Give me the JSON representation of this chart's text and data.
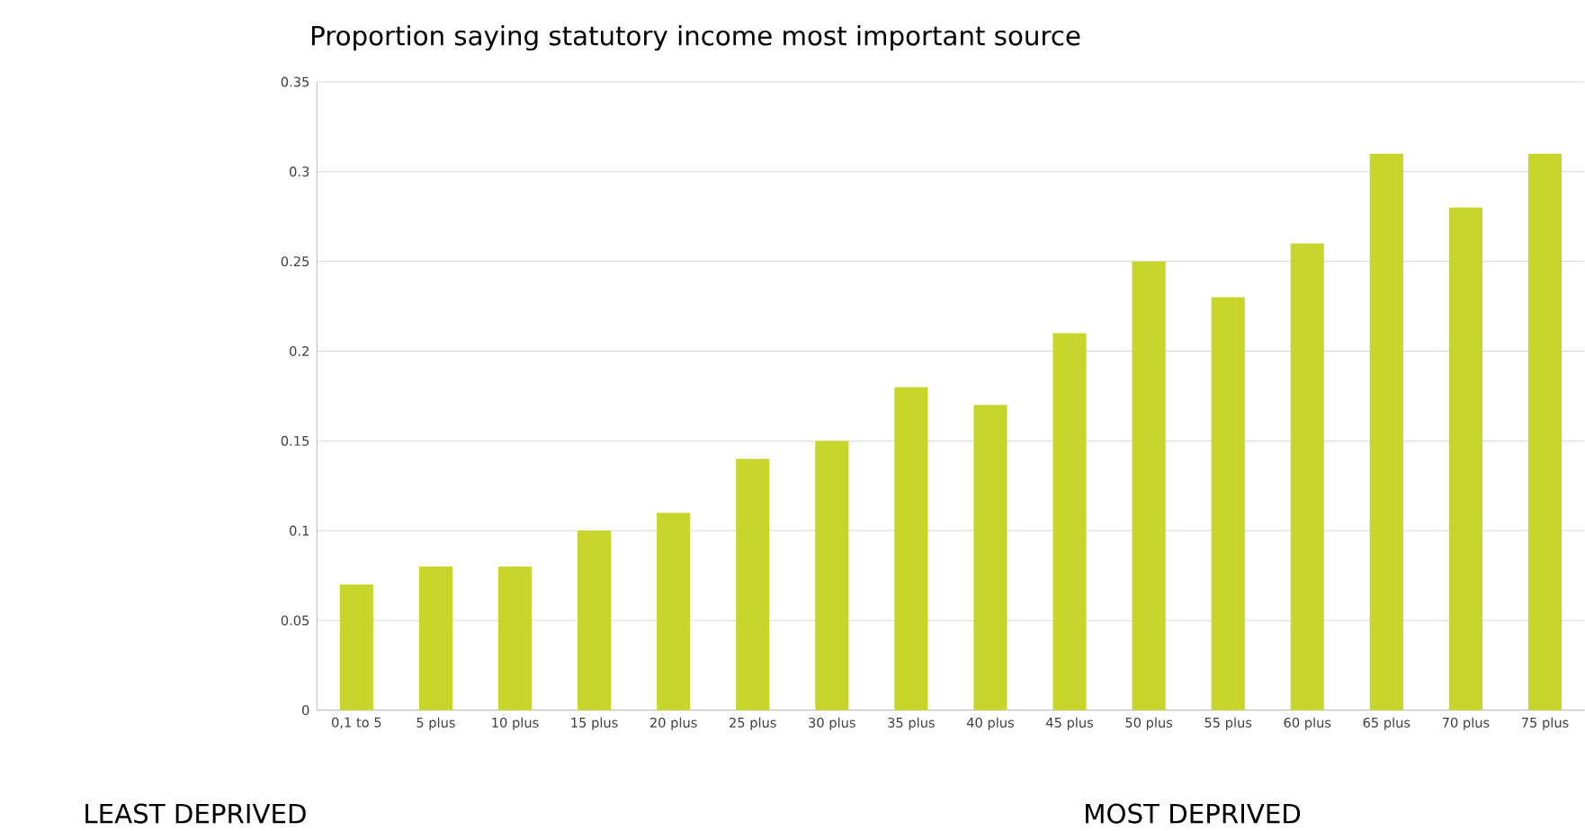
{
  "chart_data": {
    "type": "bar",
    "title": "Proportion saying statutory income most important source",
    "categories": [
      "0,1 to 5",
      "5 plus",
      "10 plus",
      "15 plus",
      "20 plus",
      "25 plus",
      "30 plus",
      "35 plus",
      "40 plus",
      "45 plus",
      "50 plus",
      "55 plus",
      "60 plus",
      "65 plus",
      "70 plus",
      "75 plus"
    ],
    "values": [
      0.07,
      0.08,
      0.08,
      0.1,
      0.11,
      0.14,
      0.15,
      0.18,
      0.17,
      0.21,
      0.25,
      0.23,
      0.26,
      0.31,
      0.28,
      0.31
    ],
    "color": "#c8d62b",
    "ylim": [
      0,
      0.35
    ],
    "yticks": [
      0,
      0.05,
      0.1,
      0.15,
      0.2,
      0.25,
      0.3,
      0.35
    ],
    "grid": "y",
    "annotations": [
      "LEAST DEPRIVED",
      "MOST DEPRIVED"
    ]
  }
}
